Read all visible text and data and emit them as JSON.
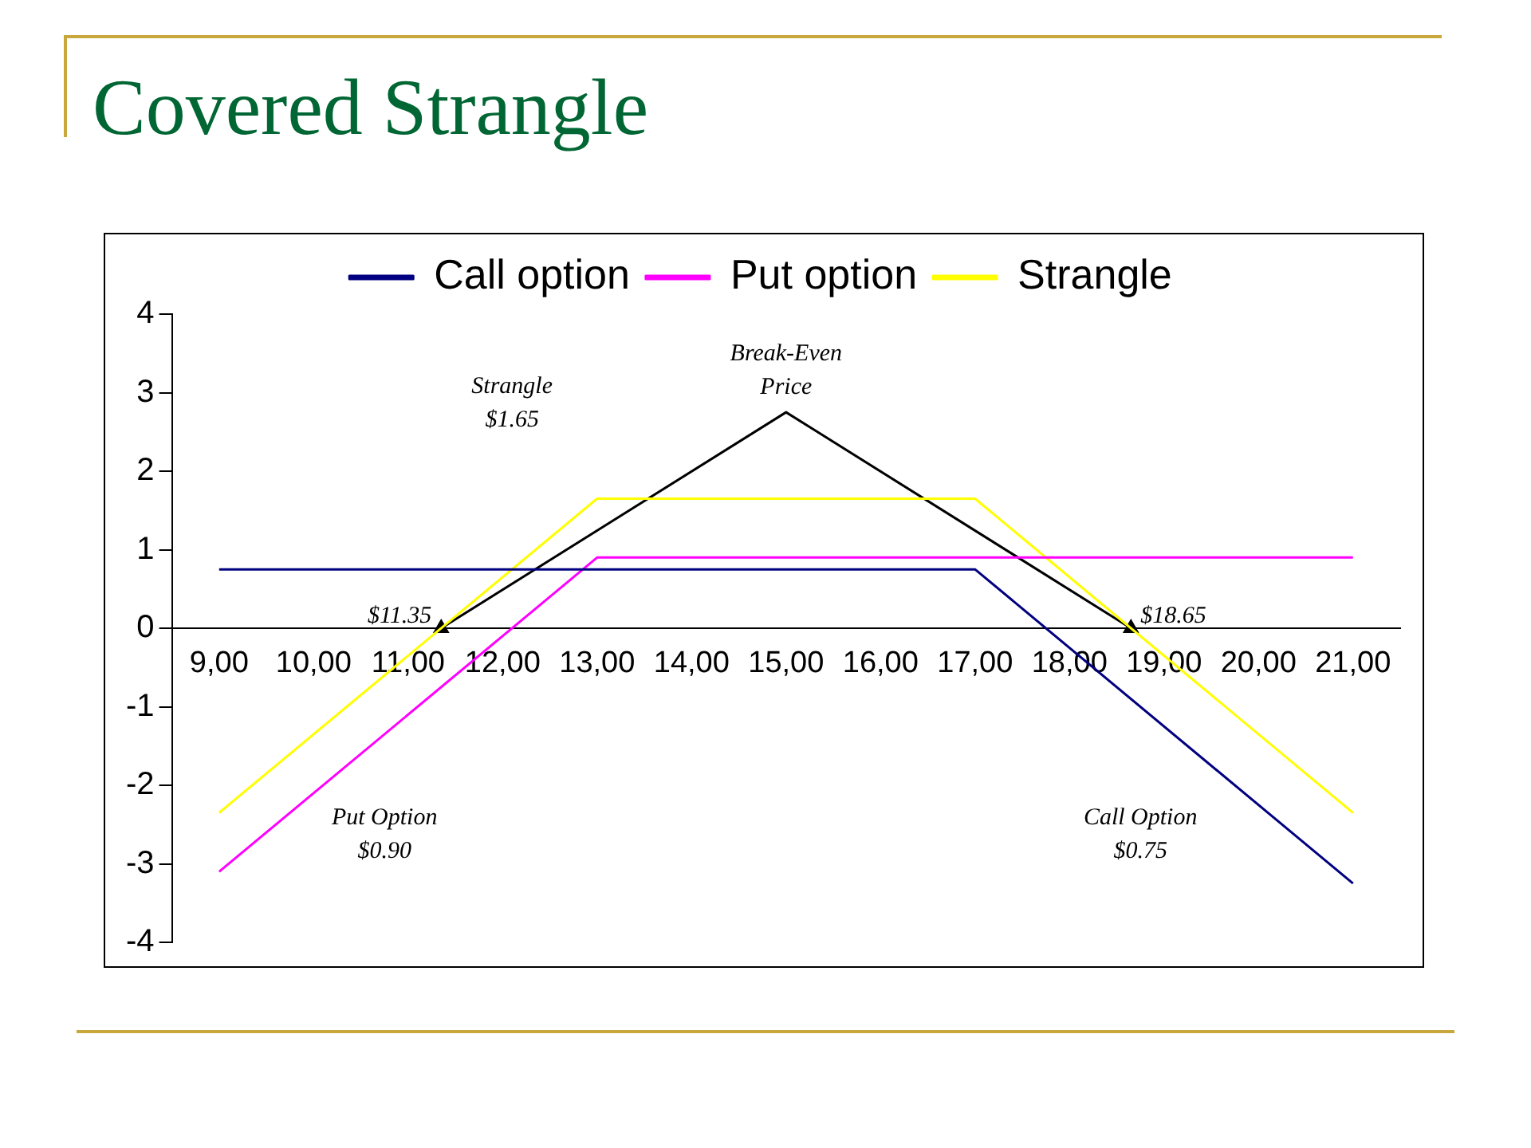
{
  "chart_data": {
    "type": "line",
    "title": "Covered Strangle",
    "x": [
      9,
      13,
      17,
      21
    ],
    "xlim": [
      8.5,
      21.5
    ],
    "xticks": [
      {
        "value": 9,
        "label": "9,00"
      },
      {
        "value": 10,
        "label": "10,00"
      },
      {
        "value": 11,
        "label": "11,00"
      },
      {
        "value": 12,
        "label": "12,00"
      },
      {
        "value": 13,
        "label": "13,00"
      },
      {
        "value": 14,
        "label": "14,00"
      },
      {
        "value": 15,
        "label": "15,00"
      },
      {
        "value": 16,
        "label": "16,00"
      },
      {
        "value": 17,
        "label": "17,00"
      },
      {
        "value": 18,
        "label": "18,00"
      },
      {
        "value": 19,
        "label": "19,00"
      },
      {
        "value": 20,
        "label": "20,00"
      },
      {
        "value": 21,
        "label": "21,00"
      }
    ],
    "ylim": [
      -4,
      4
    ],
    "yticks": [
      -4,
      -3,
      -2,
      -1,
      0,
      1,
      2,
      3,
      4
    ],
    "grid": false,
    "legend": "top",
    "marker": "none",
    "line_style": "solid",
    "series": [
      {
        "name": "Call option",
        "color": "#000080",
        "values": [
          0.75,
          0.75,
          0.75,
          -3.25
        ]
      },
      {
        "name": "Put option",
        "color": "#ff00ff",
        "values": [
          -3.1,
          0.9,
          0.9,
          0.9
        ]
      },
      {
        "name": "Strangle",
        "color": "#ffff00",
        "values": [
          -2.35,
          1.65,
          1.65,
          -2.35
        ]
      },
      {
        "color": "#000000",
        "x": [
          11.35,
          15,
          18.65
        ],
        "values": [
          0,
          2.75,
          0
        ]
      },
      {
        "type": "scatter",
        "color": "#000000",
        "marker": "triangle",
        "x": [
          11.35,
          18.65
        ],
        "values": [
          0,
          0
        ]
      }
    ],
    "annotations": [
      {
        "text": "Break-Even\nPrice",
        "x": 15,
        "y": 2.75
      },
      "Strangle\n$1.65",
      {
        "text": "$11.35",
        "x": 11.35,
        "y": 0
      },
      {
        "text": "$18.65",
        "x": 18.65,
        "y": 0
      },
      "Put Option\n$0.90",
      "Call Option\n$0.75"
    ]
  }
}
